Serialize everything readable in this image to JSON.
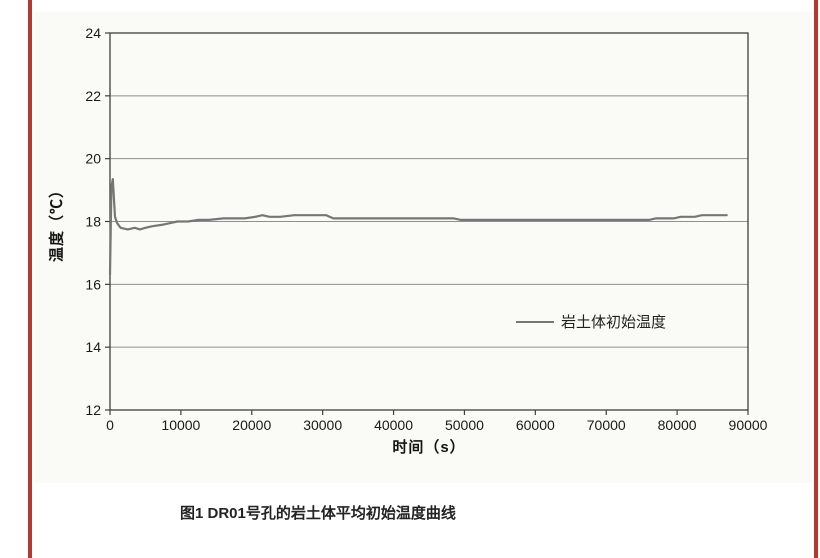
{
  "page": {
    "caption": "图1 DR01号孔的岩土体平均初始温度曲线"
  },
  "figure": {
    "legend_label": "岩土体初始温度"
  },
  "chart_data": {
    "type": "line",
    "title": "",
    "xlabel": "时间（s）",
    "ylabel": "温度（℃）",
    "xlim": [
      0,
      90000
    ],
    "ylim": [
      12,
      24
    ],
    "x_ticks": [
      0,
      10000,
      20000,
      30000,
      40000,
      50000,
      60000,
      70000,
      80000,
      90000
    ],
    "y_ticks": [
      12,
      14,
      16,
      18,
      20,
      22,
      24
    ],
    "grid": "horizontal",
    "legend_position": "inside-right-middle",
    "colors": {
      "line": "#767676",
      "gridline": "#8f8f8f",
      "plot_border": "#3f3f3f",
      "tick_text": "#1a1a1a",
      "scan_edge": "#b23a30"
    },
    "series": [
      {
        "name": "岩土体初始温度",
        "color": "#767676",
        "points": [
          [
            0,
            16.3
          ],
          [
            200,
            19.1
          ],
          [
            400,
            19.35
          ],
          [
            700,
            18.15
          ],
          [
            1000,
            17.95
          ],
          [
            1500,
            17.8
          ],
          [
            2500,
            17.75
          ],
          [
            3500,
            17.8
          ],
          [
            4200,
            17.75
          ],
          [
            5000,
            17.8
          ],
          [
            6000,
            17.85
          ],
          [
            7500,
            17.9
          ],
          [
            8500,
            17.95
          ],
          [
            9500,
            18.0
          ],
          [
            11000,
            18.0
          ],
          [
            12500,
            18.05
          ],
          [
            14000,
            18.05
          ],
          [
            16000,
            18.1
          ],
          [
            19000,
            18.1
          ],
          [
            20500,
            18.15
          ],
          [
            21500,
            18.2
          ],
          [
            22500,
            18.15
          ],
          [
            24000,
            18.15
          ],
          [
            26000,
            18.2
          ],
          [
            30500,
            18.2
          ],
          [
            31500,
            18.1
          ],
          [
            35000,
            18.1
          ],
          [
            40000,
            18.1
          ],
          [
            45000,
            18.1
          ],
          [
            48500,
            18.1
          ],
          [
            49500,
            18.05
          ],
          [
            55000,
            18.05
          ],
          [
            60000,
            18.05
          ],
          [
            65000,
            18.05
          ],
          [
            70000,
            18.05
          ],
          [
            76000,
            18.05
          ],
          [
            77000,
            18.1
          ],
          [
            79500,
            18.1
          ],
          [
            80500,
            18.15
          ],
          [
            82500,
            18.15
          ],
          [
            83500,
            18.2
          ],
          [
            87000,
            18.2
          ]
        ]
      }
    ]
  }
}
